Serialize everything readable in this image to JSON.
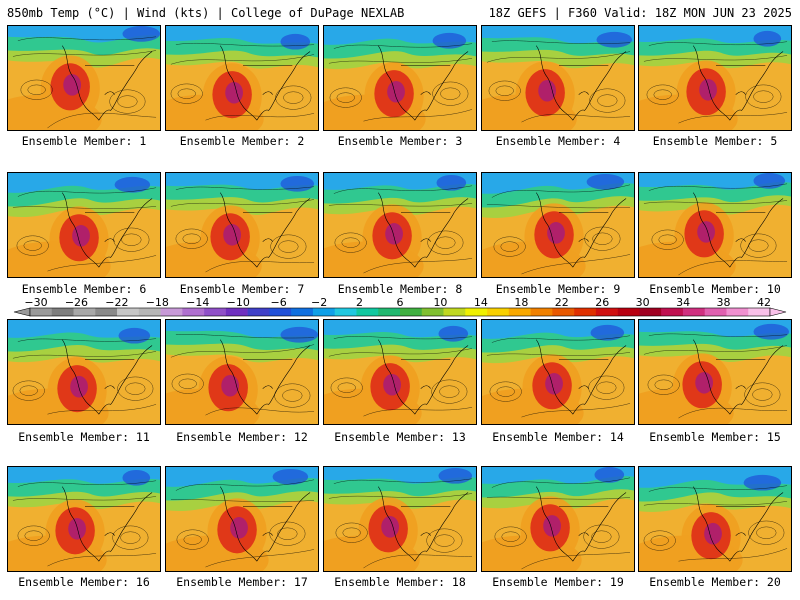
{
  "header": {
    "left": "850mb Temp (°C) | Wind (kts) | College of DuPage NEXLAB",
    "right": "18Z GEFS | F360 Valid: 18Z MON JUN 23 2025"
  },
  "panels": [
    {
      "label": "Ensemble Member: 1"
    },
    {
      "label": "Ensemble Member: 2"
    },
    {
      "label": "Ensemble Member: 3"
    },
    {
      "label": "Ensemble Member: 4"
    },
    {
      "label": "Ensemble Member: 5"
    },
    {
      "label": "Ensemble Member: 6"
    },
    {
      "label": "Ensemble Member: 7"
    },
    {
      "label": "Ensemble Member: 8"
    },
    {
      "label": "Ensemble Member: 9"
    },
    {
      "label": "Ensemble Member: 10"
    },
    {
      "label": "Ensemble Member: 11"
    },
    {
      "label": "Ensemble Member: 12"
    },
    {
      "label": "Ensemble Member: 13"
    },
    {
      "label": "Ensemble Member: 14"
    },
    {
      "label": "Ensemble Member: 15"
    },
    {
      "label": "Ensemble Member: 16"
    },
    {
      "label": "Ensemble Member: 17"
    },
    {
      "label": "Ensemble Member: 18"
    },
    {
      "label": "Ensemble Member: 19"
    },
    {
      "label": "Ensemble Member: 20"
    }
  ],
  "colorbar": {
    "labels": [
      "-30",
      "-26",
      "-22",
      "-18",
      "-14",
      "-10",
      "-6",
      "-2",
      "2",
      "6",
      "10",
      "14",
      "18",
      "22",
      "26",
      "30",
      "34",
      "38",
      "42"
    ],
    "colors": [
      "#9a9a9a",
      "#7e7e7e",
      "#a8a8a8",
      "#8a8a8a",
      "#c6c6c6",
      "#b6b6b6",
      "#c89ad8",
      "#b070d0",
      "#9050c8",
      "#7030c0",
      "#4040c8",
      "#2050d8",
      "#1070e0",
      "#10a0e8",
      "#20c8e0",
      "#10c8a0",
      "#20b870",
      "#40b040",
      "#80c030",
      "#c0d820",
      "#f0f000",
      "#f8d000",
      "#f8a800",
      "#f08000",
      "#e85800",
      "#e03000",
      "#d01010",
      "#b80010",
      "#a00020",
      "#c01050",
      "#d03080",
      "#e060b0",
      "#f090d0",
      "#f8c0e8"
    ]
  },
  "map_colors": {
    "cold": "#28a8e8",
    "cool": "#30c890",
    "mild": "#a8d040",
    "warm": "#f0a020",
    "hot": "#e03818",
    "core": "#b0206a",
    "ocean": "#f0b030"
  }
}
